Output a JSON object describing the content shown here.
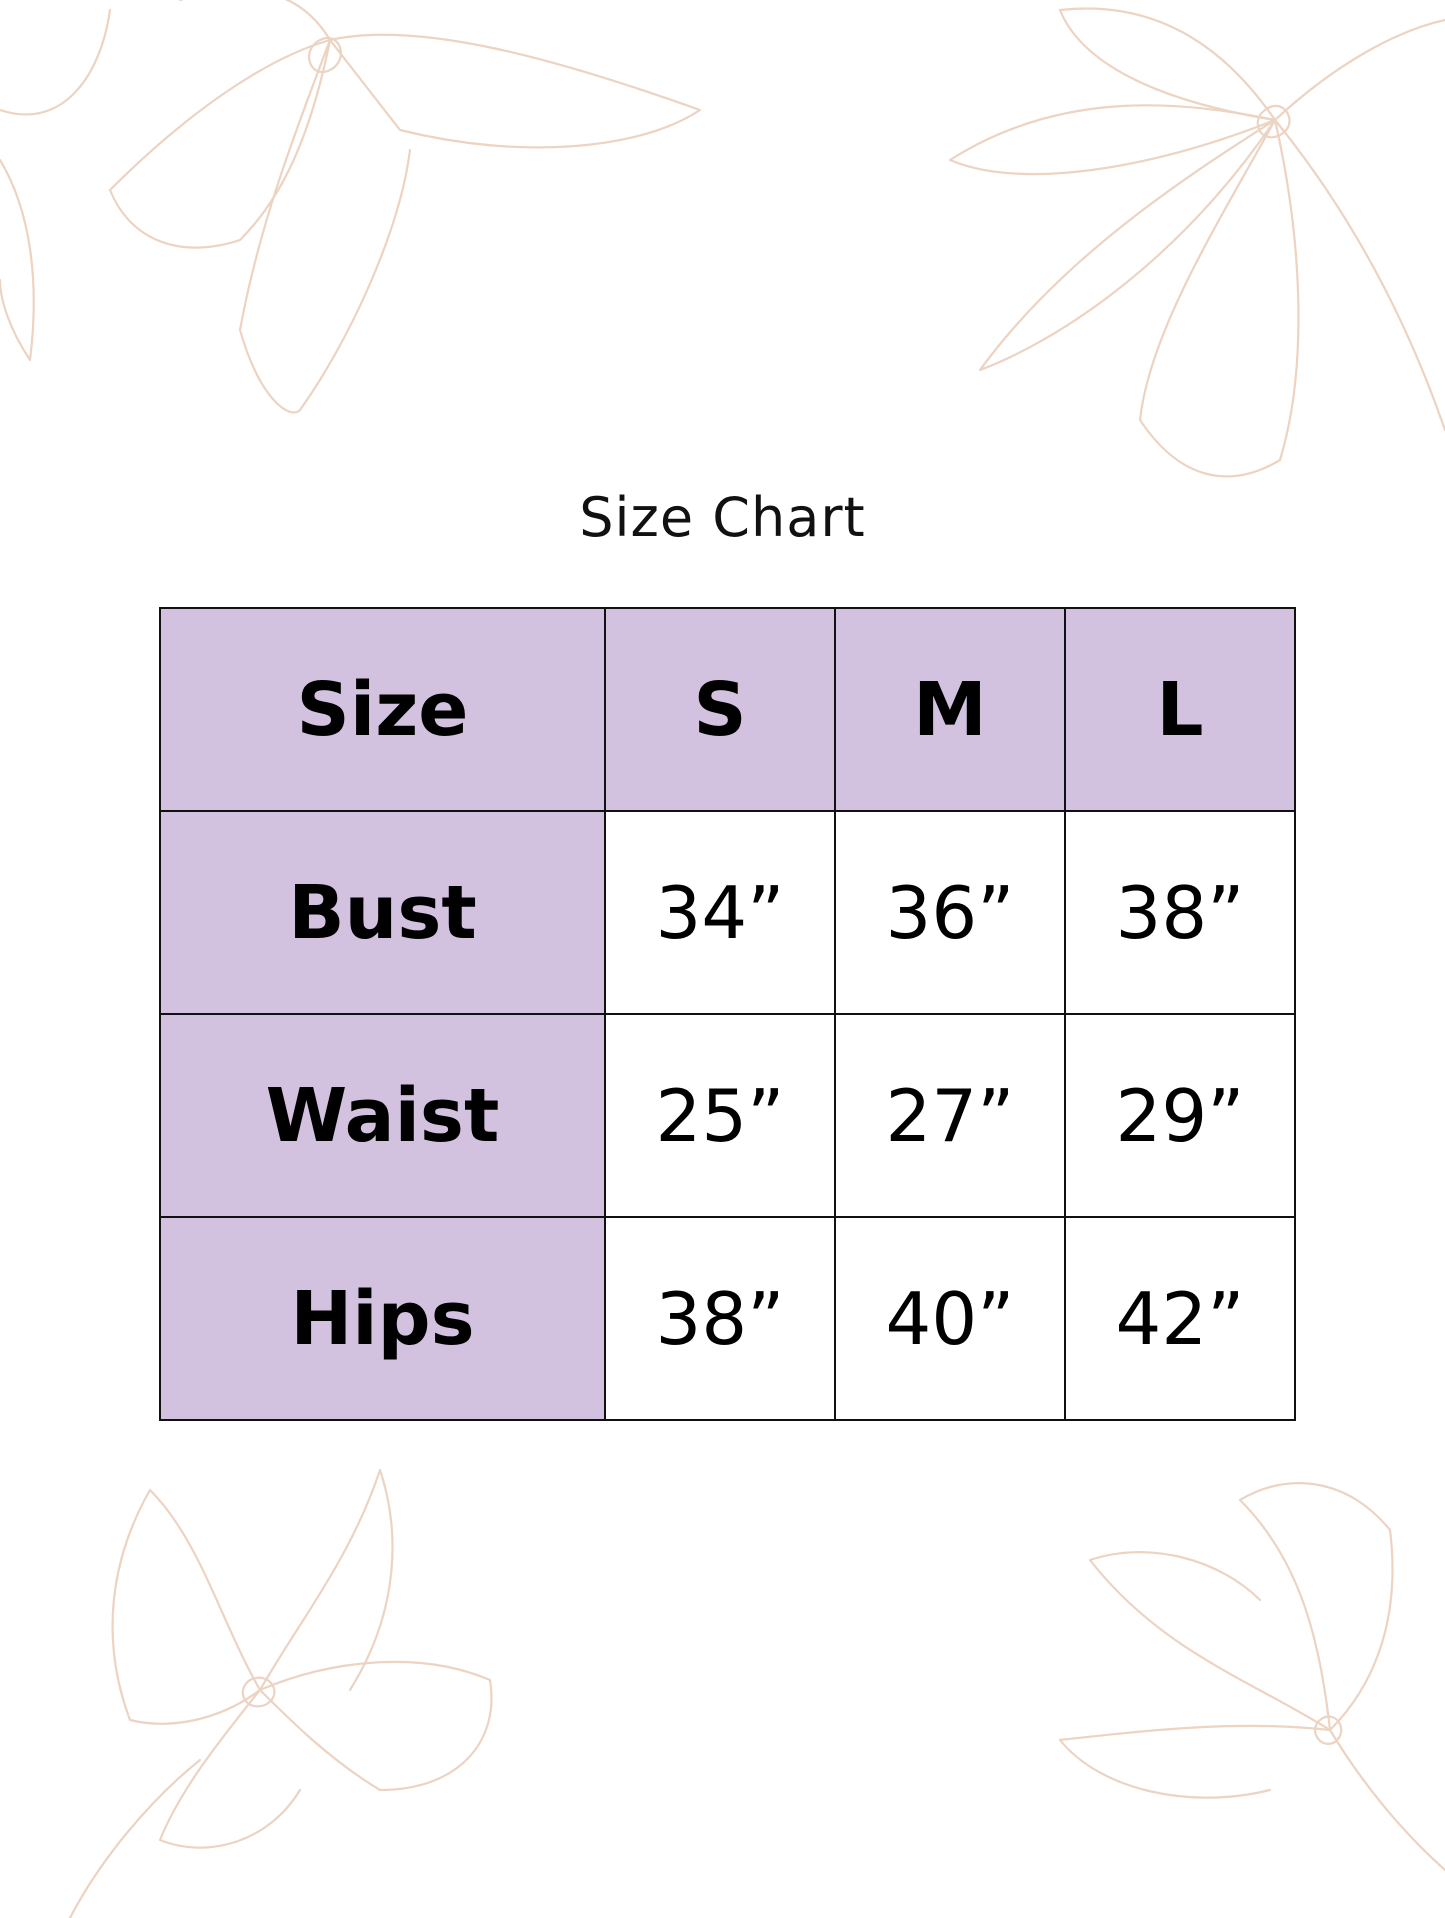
{
  "title": "Size Chart",
  "colors": {
    "header_fill": "#d3c1e0",
    "border": "#111111",
    "flower_lines": "#ecd3c2"
  },
  "decoration": "flower-line-art",
  "table": {
    "headers": [
      "Size",
      "S",
      "M",
      "L"
    ],
    "rows": [
      {
        "label": "Bust",
        "values": [
          "34”",
          "36”",
          "38”"
        ]
      },
      {
        "label": "Waist",
        "values": [
          "25”",
          "27”",
          "29”"
        ]
      },
      {
        "label": "Hips",
        "values": [
          "38”",
          "40”",
          "42”"
        ]
      }
    ]
  }
}
